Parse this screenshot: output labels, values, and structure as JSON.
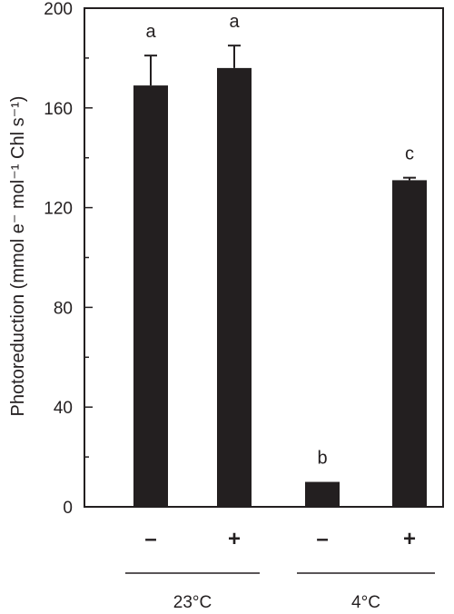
{
  "chart_data": {
    "type": "bar",
    "title": "",
    "xlabel": "",
    "ylabel": "Photoreduction (mmol e⁻ mol⁻¹ Chl s⁻¹)",
    "ylim": [
      0,
      200
    ],
    "yticks": [
      "0",
      "40",
      "80",
      "120",
      "160",
      "200"
    ],
    "grid": false,
    "legend": "none",
    "bar_color": "#231f20",
    "categories": [
      "–",
      "+",
      "–",
      "+"
    ],
    "groups": [
      {
        "label": "23°C",
        "bars": [
          0,
          1
        ]
      },
      {
        "label": "4°C",
        "bars": [
          2,
          3
        ]
      }
    ],
    "values": [
      169,
      176,
      10,
      131
    ],
    "errors": [
      12,
      9,
      0,
      1
    ],
    "significance": [
      "a",
      "a",
      "b",
      "c"
    ]
  }
}
